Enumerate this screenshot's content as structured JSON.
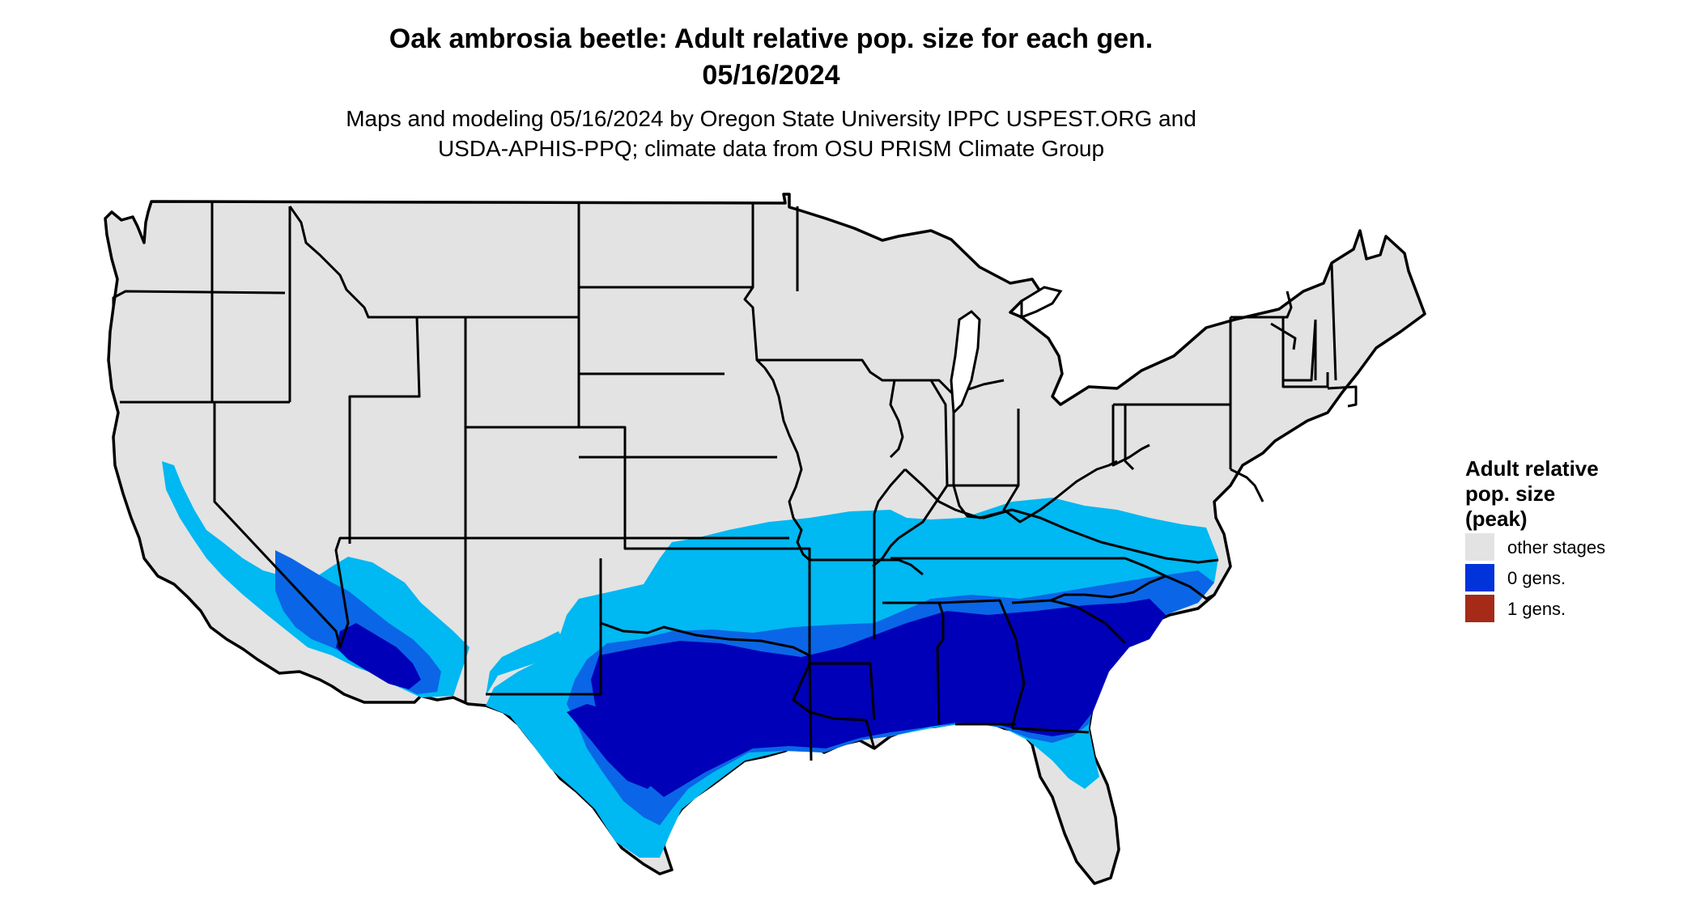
{
  "title": {
    "line1": "Oak ambrosia beetle: Adult relative pop. size for each gen.",
    "line2": "05/16/2024"
  },
  "subtitle": {
    "line1": "Maps and modeling 05/16/2024 by Oregon State University IPPC USPEST.ORG and",
    "line2": "USDA-APHIS-PPQ; climate data from OSU PRISM Climate Group"
  },
  "map": {
    "region": "contiguous-united-states",
    "boundaries": "state-lines",
    "colors": {
      "base": "#e3e3e3",
      "light_blue": "#00b8f2",
      "mid_blue": "#0a66e6",
      "blue": "#0033d9",
      "dark_blue": "#0000b8",
      "border": "#000000"
    }
  },
  "legend": {
    "title_line1": "Adult relative",
    "title_line2": "pop. size",
    "title_line3": "(peak)",
    "items": [
      {
        "label": "other stages",
        "color": "#e3e3e3"
      },
      {
        "label": "0 gens.",
        "color": "#0033d9"
      },
      {
        "label": "1 gens.",
        "color": "#a52a18"
      }
    ]
  }
}
